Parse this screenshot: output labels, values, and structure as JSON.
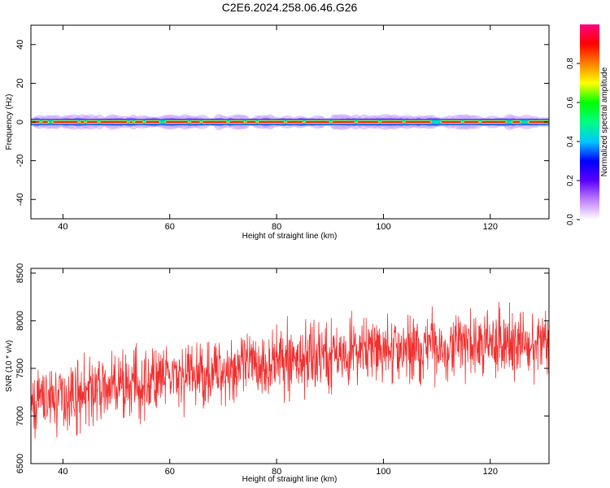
{
  "title": "C2E6.2024.258.06.46.G26",
  "chart_data": [
    {
      "type": "heatmap",
      "xlabel": "Height of straight line (km)",
      "ylabel": "Frequency (Hz)",
      "xlim": [
        34,
        131
      ],
      "ylim": [
        -50,
        50
      ],
      "xticks": [
        40,
        60,
        80,
        100,
        120
      ],
      "yticks": [
        -40,
        -20,
        0,
        20,
        40
      ],
      "band": {
        "center_frequency": 0,
        "core_halfwidth": 1.2,
        "halo_halfwidth": 3.2
      },
      "colorbar": {
        "label": "Normalized spectral amplitude",
        "range": [
          0,
          1
        ],
        "ticks": [
          0.0,
          0.2,
          0.4,
          0.6,
          0.8
        ],
        "colors": [
          "#ffffff",
          "#c080ff",
          "#5a00ff",
          "#0000ff",
          "#00c8ff",
          "#00ff80",
          "#00ff00",
          "#ffff00",
          "#ff8000",
          "#ff0000",
          "#ff0080"
        ]
      }
    },
    {
      "type": "line",
      "xlabel": "Height of straight line (km)",
      "ylabel": "SNR (10 * v/v)",
      "xlim": [
        34,
        131
      ],
      "ylim": [
        6500,
        8550
      ],
      "xticks": [
        40,
        60,
        80,
        100,
        120
      ],
      "yticks": [
        6500,
        7000,
        7500,
        8000,
        8500
      ],
      "color": "#f03030",
      "trend": [
        [
          34,
          7150
        ],
        [
          50,
          7300
        ],
        [
          70,
          7480
        ],
        [
          90,
          7650
        ],
        [
          110,
          7730
        ],
        [
          131,
          7780
        ]
      ],
      "noise_amplitude": 320,
      "n_points": 1500
    }
  ]
}
